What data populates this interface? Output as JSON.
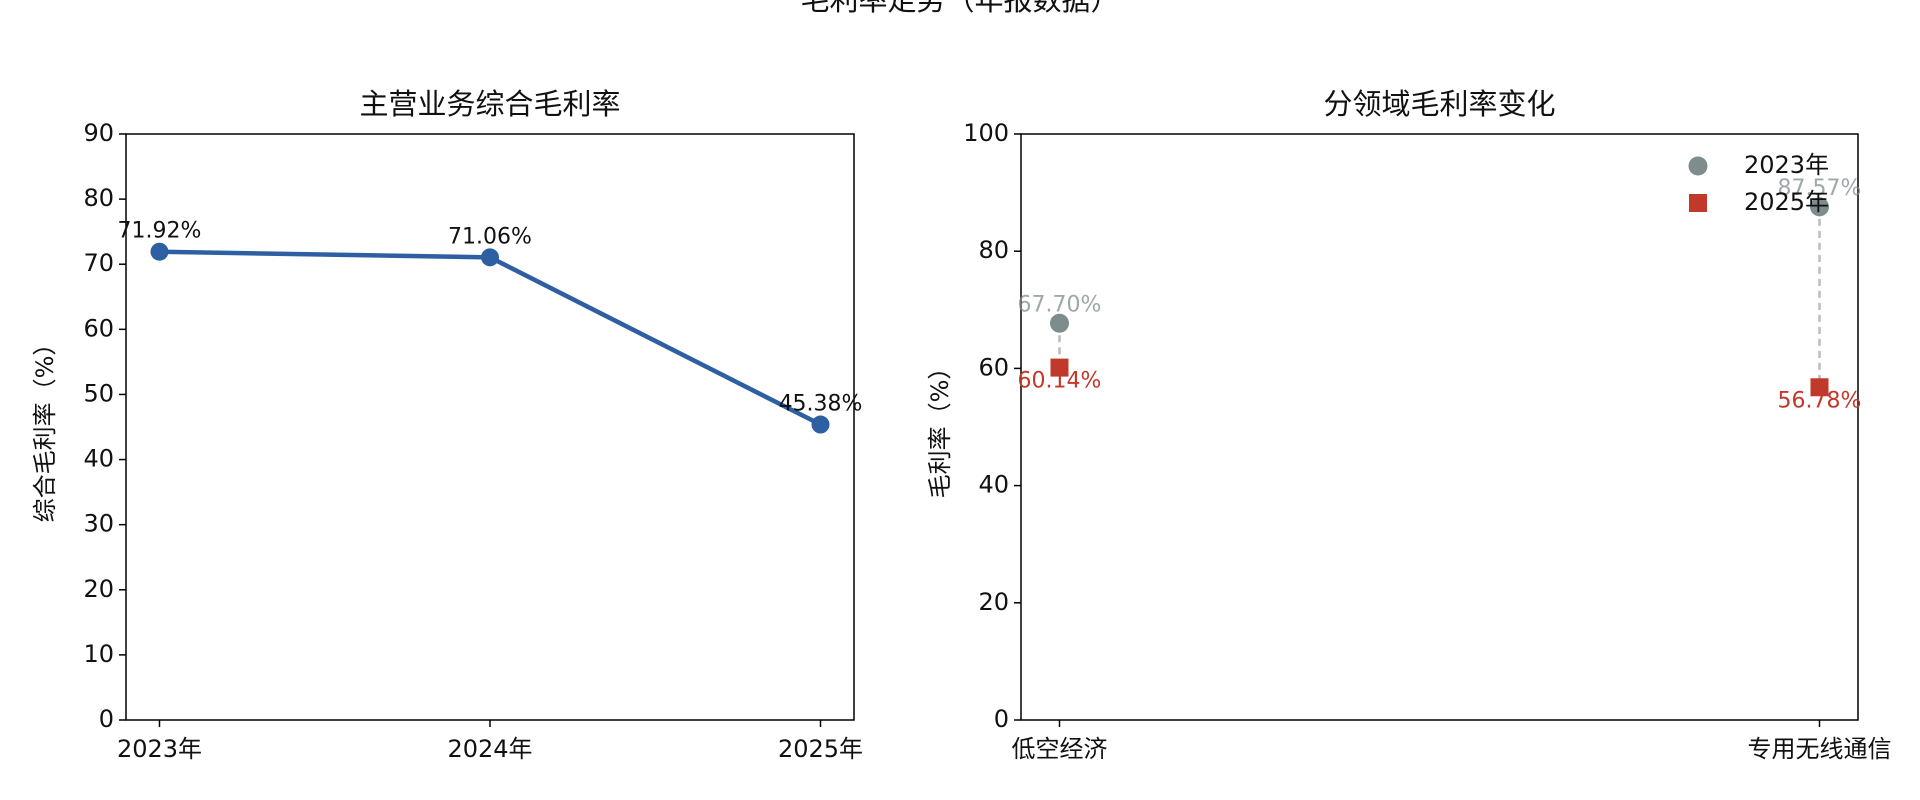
{
  "title": "毛利率走势（年报数据）",
  "chart_data": [
    {
      "type": "line",
      "title": "主营业务综合毛利率",
      "ylabel": "综合毛利率（%）",
      "categories": [
        "2023年",
        "2024年",
        "2025年"
      ],
      "series": [
        {
          "name": "综合毛利率",
          "color": "#2e5fa3",
          "values": [
            71.92,
            71.06,
            45.38
          ],
          "value_labels": [
            "71.92%",
            "71.06%",
            "45.38%"
          ]
        }
      ],
      "ylim": [
        0,
        90
      ],
      "yticks": [
        0,
        10,
        20,
        30,
        40,
        50,
        60,
        70,
        80,
        90
      ],
      "grid": false
    },
    {
      "type": "dumbbell",
      "title": "分领域毛利率变化",
      "ylabel": "毛利率（%）",
      "categories": [
        "低空经济",
        "专用无线通信"
      ],
      "series": [
        {
          "name": "2023年",
          "color": "#7f8c8d",
          "marker": "circle",
          "values": [
            67.7,
            87.57
          ],
          "value_labels": [
            "67.70%",
            "87.57%"
          ]
        },
        {
          "name": "2025年",
          "color": "#c0392b",
          "marker": "square",
          "values": [
            60.14,
            56.78
          ],
          "value_labels": [
            "60.14%",
            "56.78%"
          ]
        }
      ],
      "ylim": [
        0,
        100
      ],
      "yticks": [
        0,
        20,
        40,
        60,
        80,
        100
      ],
      "grid": false,
      "legend": "upper right"
    }
  ]
}
